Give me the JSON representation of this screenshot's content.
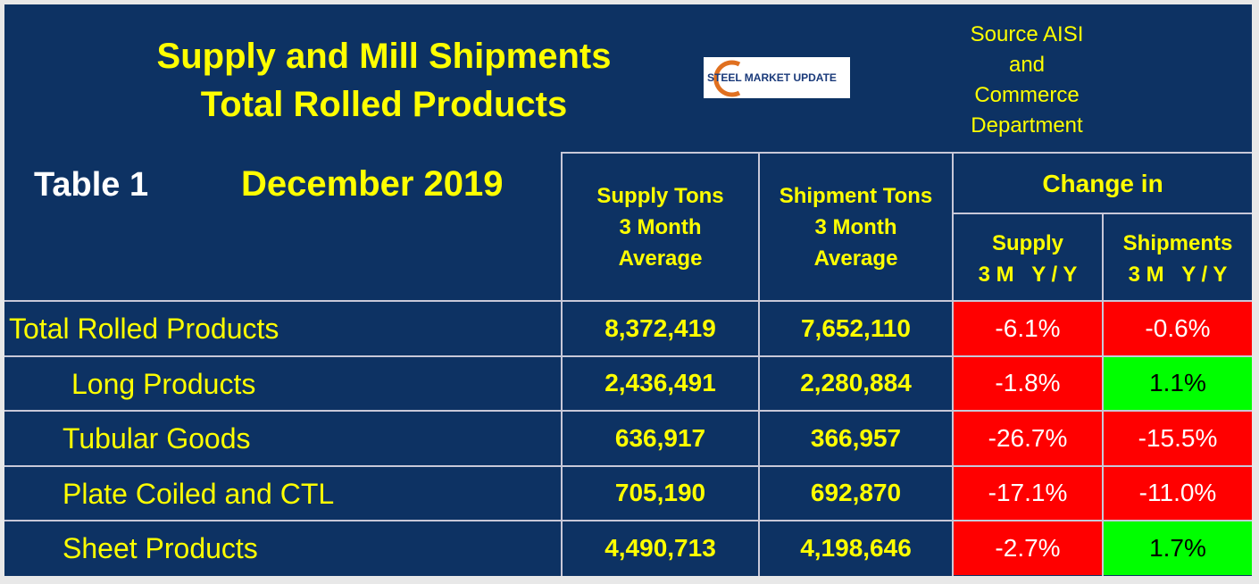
{
  "header": {
    "title": [
      "Supply and Mill Shipments",
      "Total Rolled Products"
    ],
    "logo": "STEEL MARKET UPDATE",
    "source": [
      "Source AISI",
      "and",
      "Commerce",
      "Department"
    ],
    "table_label": "Table 1",
    "date": "December 2019"
  },
  "columns": {
    "supply": [
      "Supply Tons",
      "3 Month",
      "Average"
    ],
    "shipments": [
      "Shipment Tons",
      "3 Month",
      "Average"
    ],
    "change": "Change in",
    "supply_change": [
      "Supply",
      "3 M   Y / Y"
    ],
    "shipments_change": [
      "Shipments",
      "3 M   Y / Y"
    ]
  },
  "table": {
    "rows": [
      {
        "label": "Total Rolled Products",
        "supply": "8,372,419",
        "shipments": "7,652,110",
        "supply_change": {
          "text": "-6.1%",
          "fill": "#ff0000",
          "color": "#ffffff"
        },
        "shipments_change": {
          "text": "-0.6%",
          "fill": "#ff0000",
          "color": "#ffffff"
        }
      },
      {
        "label": "Long Products",
        "supply": "2,436,491",
        "shipments": "2,280,884",
        "supply_change": {
          "text": "-1.8%",
          "fill": "#ff0000",
          "color": "#ffffff"
        },
        "shipments_change": {
          "text": "1.1%",
          "fill": "#00ff00",
          "color": "#000000"
        }
      },
      {
        "label": "Tubular Goods",
        "supply": "636,917",
        "shipments": "366,957",
        "supply_change": {
          "text": "-26.7%",
          "fill": "#ff0000",
          "color": "#ffffff"
        },
        "shipments_change": {
          "text": "-15.5%",
          "fill": "#ff0000",
          "color": "#ffffff"
        }
      },
      {
        "label": "Plate Coiled and CTL",
        "supply": "705,190",
        "shipments": "692,870",
        "supply_change": {
          "text": "-17.1%",
          "fill": "#ff0000",
          "color": "#ffffff"
        },
        "shipments_change": {
          "text": "-11.0%",
          "fill": "#ff0000",
          "color": "#ffffff"
        }
      },
      {
        "label": "Sheet Products",
        "supply": "4,490,713",
        "shipments": "4,198,646",
        "supply_change": {
          "text": "-2.7%",
          "fill": "#ff0000",
          "color": "#ffffff"
        },
        "shipments_change": {
          "text": "1.7%",
          "fill": "#00ff00",
          "color": "#000000"
        }
      }
    ]
  }
}
